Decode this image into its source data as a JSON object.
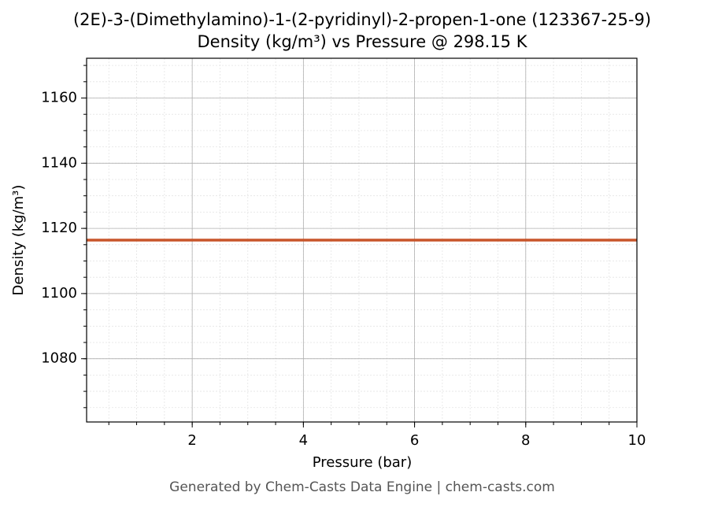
{
  "chart_data": {
    "type": "line",
    "title": "(2E)-3-(Dimethylamino)-1-(2-pyridinyl)-2-propen-1-one (123367-25-9)",
    "subtitle": "Density (kg/m³) vs Pressure @ 298.15 K",
    "x_label": "Pressure (bar)",
    "y_label": "Density (kg/m³)",
    "x": [
      0.1,
      10
    ],
    "series": [
      {
        "name": "Density",
        "color": "#c8552a",
        "values": [
          1116.4,
          1116.4
        ]
      }
    ],
    "xlim": [
      0.1,
      10
    ],
    "xticks": [
      2,
      4,
      6,
      8,
      10
    ],
    "ylim": [
      1060.6,
      1172.2
    ],
    "yticks": [
      1080,
      1100,
      1120,
      1140,
      1160
    ],
    "grid": true,
    "footer": "Generated by Chem-Casts Data Engine | chem-casts.com"
  }
}
